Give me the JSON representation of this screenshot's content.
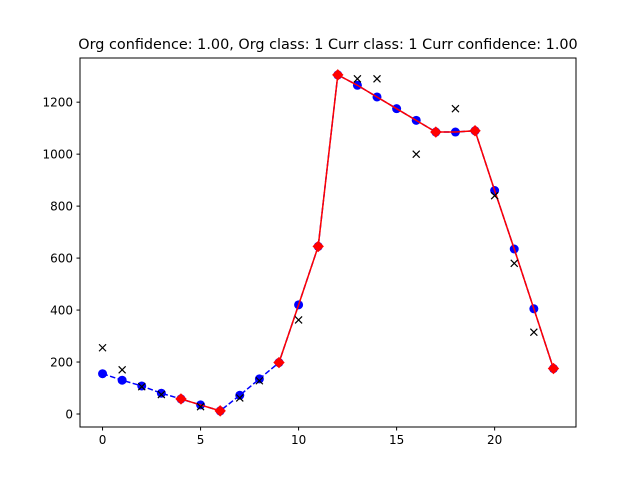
{
  "chart_data": {
    "type": "line",
    "title": "Org confidence: 1.00, Org class: 1 Curr class: 1 Curr confidence: 1.00",
    "xlabel": "",
    "ylabel": "",
    "xlim": [
      -1.15,
      24.15
    ],
    "ylim": [
      -50,
      1370
    ],
    "xticks": [
      0,
      5,
      10,
      15,
      20
    ],
    "yticks": [
      0,
      200,
      400,
      600,
      800,
      1000,
      1200
    ],
    "grid": false,
    "legend": "none",
    "series": [
      {
        "style": "blue dashed line with circle markers",
        "color": "#0000ff",
        "x": [
          0,
          1,
          2,
          3,
          4,
          5,
          6,
          7,
          8,
          9,
          10,
          11,
          12,
          13,
          14,
          15,
          16,
          17,
          18,
          19,
          20,
          21,
          22,
          23
        ],
        "y": [
          155,
          130,
          108,
          80,
          58,
          35,
          12,
          72,
          135,
          198,
          420,
          645,
          1305,
          1265,
          1220,
          1175,
          1130,
          1085,
          1085,
          1090,
          860,
          635,
          405,
          175
        ]
      },
      {
        "style": "red solid line with diamond markers (subset of points)",
        "color": "#ff0000",
        "x": [
          4,
          6,
          9,
          11,
          12,
          17,
          19,
          23
        ],
        "y": [
          58,
          12,
          198,
          645,
          1305,
          1085,
          1090,
          175
        ],
        "segments": [
          [
            4,
            6
          ],
          [
            9,
            19
          ],
          [
            19,
            23
          ]
        ]
      },
      {
        "style": "black x markers",
        "color": "#000000",
        "x": [
          0,
          1,
          2,
          3,
          5,
          7,
          8,
          10,
          13,
          14,
          16,
          18,
          20,
          21,
          22
        ],
        "y": [
          255,
          170,
          105,
          75,
          28,
          62,
          128,
          362,
          1290,
          1290,
          1000,
          1175,
          840,
          580,
          315
        ]
      }
    ]
  }
}
